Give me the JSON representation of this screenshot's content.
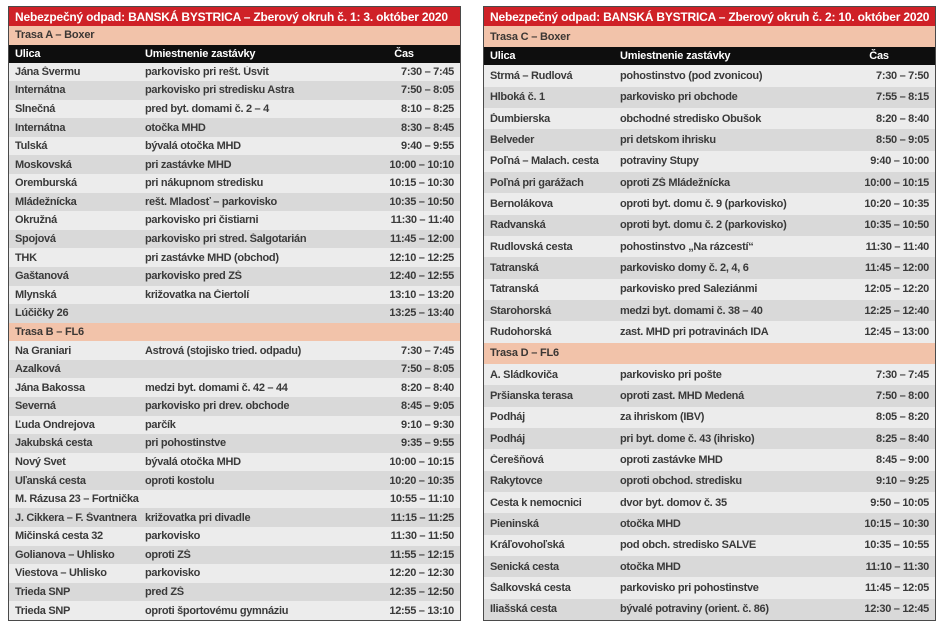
{
  "colors": {
    "accent_red": "#cf2127",
    "section_salmon": "#f2c3aa",
    "column_header_black": "#0e0e0e",
    "row_light_gray": "#ececec",
    "row_dark_gray": "#d9d9d9",
    "body_text": "#3a3a3a",
    "title_text": "#ffffff"
  },
  "tables": [
    {
      "title": "Nebezpečný odpad: BANSKÁ BYSTRICA – Zberový okruh č. 1: 3. október 2020",
      "columns": {
        "street": "Ulica",
        "location": "Umiestnenie zastávky",
        "time": "Čas"
      },
      "sections": [
        {
          "name": "Trasa A – Boxer",
          "rows": [
            {
              "street": "Jána Švermu",
              "location": "parkovisko pri rešt. Úsvit",
              "time": "7:30 – 7:45"
            },
            {
              "street": "Internátna",
              "location": "parkovisko pri stredisku Astra",
              "time": "7:50 – 8:05"
            },
            {
              "street": "Slnečná",
              "location": "pred byt. domami č. 2 – 4",
              "time": "8:10 – 8:25"
            },
            {
              "street": "Internátna",
              "location": "otočka MHD",
              "time": "8:30 – 8:45"
            },
            {
              "street": "Tulská",
              "location": "bývalá otočka MHD",
              "time": "9:40 – 9:55"
            },
            {
              "street": "Moskovská",
              "location": "pri zastávke MHD",
              "time": "10:00 – 10:10"
            },
            {
              "street": "Oremburská",
              "location": "pri nákupnom stredisku",
              "time": "10:15 – 10:30"
            },
            {
              "street": "Mládežnícka",
              "location": "rešt. Mladosť – parkovisko",
              "time": "10:35 – 10:50"
            },
            {
              "street": "Okružná",
              "location": "parkovisko pri čistiarni",
              "time": "11:30 – 11:40"
            },
            {
              "street": "Spojová",
              "location": "parkovisko pri stred. Šalgotarián",
              "time": "11:45 – 12:00"
            },
            {
              "street": "THK",
              "location": "pri zastávke MHD (obchod)",
              "time": "12:10 – 12:25"
            },
            {
              "street": "Gaštanová",
              "location": "parkovisko pred ZŠ",
              "time": "12:40 – 12:55"
            },
            {
              "street": "Mlynská",
              "location": "križovatka na Čiertolí",
              "time": "13:10 – 13:20"
            },
            {
              "street": "Lúčičky 26",
              "location": "",
              "time": "13:25 – 13:40"
            }
          ]
        },
        {
          "name": "Trasa B – FL6",
          "rows": [
            {
              "street": "Na Graniari",
              "location": "Astrová (stojisko tried. odpadu)",
              "time": "7:30 – 7:45"
            },
            {
              "street": "Azalková",
              "location": "",
              "time": "7:50 – 8:05"
            },
            {
              "street": "Jána Bakossa",
              "location": "medzi byt. domami č. 42 – 44",
              "time": "8:20 – 8:40"
            },
            {
              "street": "Severná",
              "location": "parkovisko pri drev. obchode",
              "time": "8:45 – 9:05"
            },
            {
              "street": "Ľuda Ondrejova",
              "location": "parčík",
              "time": "9:10 – 9:30"
            },
            {
              "street": "Jakubská cesta",
              "location": "pri pohostinstve",
              "time": "9:35 – 9:55"
            },
            {
              "street": "Nový Svet",
              "location": "bývalá otočka MHD",
              "time": "10:00 – 10:15"
            },
            {
              "street": "Uľanská cesta",
              "location": "oproti kostolu",
              "time": "10:20 – 10:35"
            },
            {
              "street": "M. Rázusa 23 – Fortnička",
              "location": "",
              "time": "10:55 – 11:10"
            },
            {
              "street": "J. Cikkera – F. Švantnera",
              "location": "križovatka pri divadle",
              "time": "11:15 – 11:25"
            },
            {
              "street": "Mičinská cesta 32",
              "location": "parkovisko",
              "time": "11:30 – 11:50"
            },
            {
              "street": "Golianova – Uhlisko",
              "location": "oproti ZŠ",
              "time": "11:55 – 12:15"
            },
            {
              "street": "Viestova – Uhlisko",
              "location": "parkovisko",
              "time": "12:20 – 12:30"
            },
            {
              "street": "Trieda SNP",
              "location": "pred ZŠ",
              "time": "12:35 – 12:50"
            },
            {
              "street": "Trieda SNP",
              "location": "oproti športovému gymnáziu",
              "time": "12:55 – 13:10"
            }
          ]
        }
      ]
    },
    {
      "title": "Nebezpečný odpad: BANSKÁ BYSTRICA – Zberový okruh č. 2: 10. október 2020",
      "columns": {
        "street": "Ulica",
        "location": "Umiestnenie zastávky",
        "time": "Čas"
      },
      "sections": [
        {
          "name": "Trasa C – Boxer",
          "rows": [
            {
              "street": "Strmá – Rudlová",
              "location": "pohostinstvo (pod zvonicou)",
              "time": "7:30 – 7:50"
            },
            {
              "street": "Hlboká č. 1",
              "location": "parkovisko pri obchode",
              "time": "7:55 – 8:15"
            },
            {
              "street": "Ďumbierska",
              "location": "obchodné stredisko Obušok",
              "time": "8:20 – 8:40"
            },
            {
              "street": "Belveder",
              "location": "pri detskom ihrisku",
              "time": "8:50 – 9:05"
            },
            {
              "street": "Poľná – Malach. cesta",
              "location": "potraviny Stupy",
              "time": "9:40 – 10:00"
            },
            {
              "street": "Poľná pri garážach",
              "location": "oproti ZŠ Mládežnícka",
              "time": "10:00 – 10:15"
            },
            {
              "street": "Bernolákova",
              "location": "oproti byt. domu č. 9 (parkovisko)",
              "time": "10:20 – 10:35"
            },
            {
              "street": "Radvanská",
              "location": "oproti byt. domu č. 2 (parkovisko)",
              "time": "10:35 – 10:50"
            },
            {
              "street": "Rudlovská cesta",
              "location": "pohostinstvo „Na rázcestí“",
              "time": "11:30 – 11:40"
            },
            {
              "street": "Tatranská",
              "location": "parkovisko domy č. 2, 4, 6",
              "time": "11:45 – 12:00"
            },
            {
              "street": "Tatranská",
              "location": "parkovisko pred Saleziánmi",
              "time": "12:05 – 12:20"
            },
            {
              "street": "Starohorská",
              "location": "medzi byt. domami č. 38 – 40",
              "time": "12:25 – 12:40"
            },
            {
              "street": "Rudohorská",
              "location": "zast. MHD pri potravinách IDA",
              "time": "12:45 – 13:00"
            }
          ]
        },
        {
          "name": "Trasa D – FL6",
          "rows": [
            {
              "street": "A. Sládkoviča",
              "location": "parkovisko pri pošte",
              "time": "7:30 – 7:45"
            },
            {
              "street": "Pršianska terasa",
              "location": "oproti zast. MHD Medená",
              "time": "7:50 – 8:00"
            },
            {
              "street": "Podháj",
              "location": "za ihriskom (IBV)",
              "time": "8:05 – 8:20"
            },
            {
              "street": "Podháj",
              "location": "pri byt. dome č. 43 (ihrisko)",
              "time": "8:25 – 8:40"
            },
            {
              "street": "Čerešňová",
              "location": "oproti zastávke MHD",
              "time": "8:45 – 9:00"
            },
            {
              "street": "Rakytovce",
              "location": "oproti obchod. stredisku",
              "time": "9:10 – 9:25"
            },
            {
              "street": "Cesta k nemocnici",
              "location": "dvor byt. domov č. 35",
              "time": "9:50 – 10:05"
            },
            {
              "street": "Pieninská",
              "location": "otočka MHD",
              "time": "10:15 – 10:30"
            },
            {
              "street": "Kráľovohoľská",
              "location": "pod obch. stredisko SALVE",
              "time": "10:35 – 10:55"
            },
            {
              "street": "Senická cesta",
              "location": "otočka MHD",
              "time": "11:10 – 11:30"
            },
            {
              "street": "Šalkovská cesta",
              "location": "parkovisko pri pohostinstve",
              "time": "11:45 – 12:05"
            },
            {
              "street": "Iliašská cesta",
              "location": "bývalé potraviny (orient. č. 86)",
              "time": "12:30 – 12:45"
            }
          ]
        }
      ]
    }
  ]
}
